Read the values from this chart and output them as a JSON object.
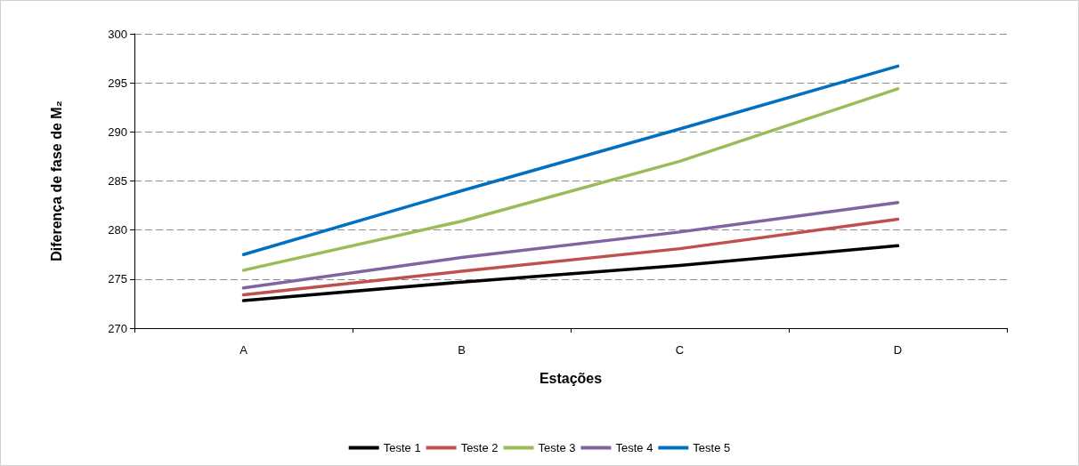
{
  "chart_data": {
    "type": "line",
    "xlabel": "Estações",
    "ylabel": "Diferença de fase de M₂",
    "categories": [
      "A",
      "B",
      "C",
      "D"
    ],
    "series": [
      {
        "name": "Teste 1",
        "color": "#000000",
        "values": [
          272.8,
          274.7,
          276.4,
          278.4
        ]
      },
      {
        "name": "Teste 2",
        "color": "#c0504d",
        "values": [
          273.4,
          275.8,
          278.1,
          281.1
        ]
      },
      {
        "name": "Teste 3",
        "color": "#9bbb59",
        "values": [
          275.9,
          280.9,
          287.0,
          294.4
        ]
      },
      {
        "name": "Teste 4",
        "color": "#8064a2",
        "values": [
          274.1,
          277.2,
          279.8,
          282.8
        ]
      },
      {
        "name": "Teste 5",
        "color": "#0070c0",
        "values": [
          277.5,
          284.0,
          290.3,
          296.7
        ]
      }
    ],
    "ylim": [
      270,
      300
    ],
    "yticks": [
      270,
      275,
      280,
      285,
      290,
      295,
      300
    ],
    "grid": "y",
    "legend": "bottom",
    "marker": "none",
    "line_style": "solid"
  }
}
